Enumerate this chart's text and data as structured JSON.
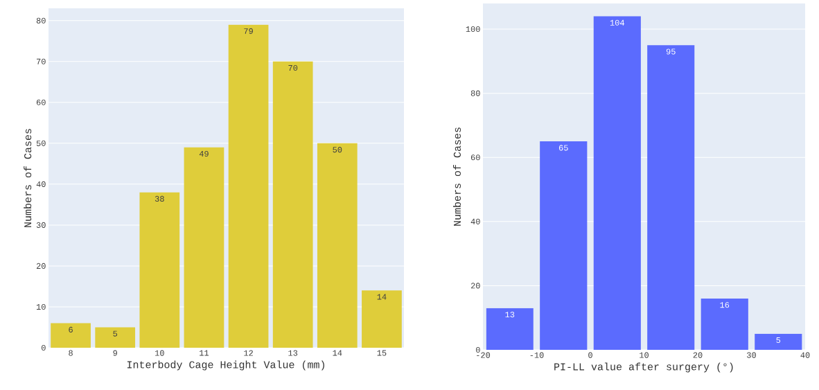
{
  "chart_data": [
    {
      "type": "bar",
      "categories": [
        "8",
        "9",
        "10",
        "11",
        "12",
        "13",
        "14",
        "15"
      ],
      "values": [
        6,
        5,
        38,
        49,
        79,
        70,
        50,
        14
      ],
      "color": "#dfcd3a",
      "ylim": [
        0,
        83
      ],
      "yticks": [
        0,
        10,
        20,
        30,
        40,
        50,
        60,
        70,
        80
      ],
      "xlabel": "Interbody Cage Height Value (mm)",
      "ylabel": "Numbers of Cases",
      "data_labels": true,
      "grid": "y"
    },
    {
      "type": "histogram",
      "bins": [
        -20,
        -10,
        0,
        10,
        20,
        30,
        40
      ],
      "values": [
        13,
        65,
        104,
        95,
        16,
        5
      ],
      "color": "#5b6bfe",
      "xlim": [
        -20,
        40
      ],
      "xticks": [
        -20,
        -10,
        0,
        10,
        20,
        30,
        40
      ],
      "ylim": [
        0,
        108
      ],
      "yticks": [
        0,
        20,
        40,
        60,
        80,
        100
      ],
      "xlabel": "PI-LL value after surgery (°)",
      "ylabel": "Numbers of Cases",
      "data_labels": true,
      "grid": "y"
    }
  ]
}
